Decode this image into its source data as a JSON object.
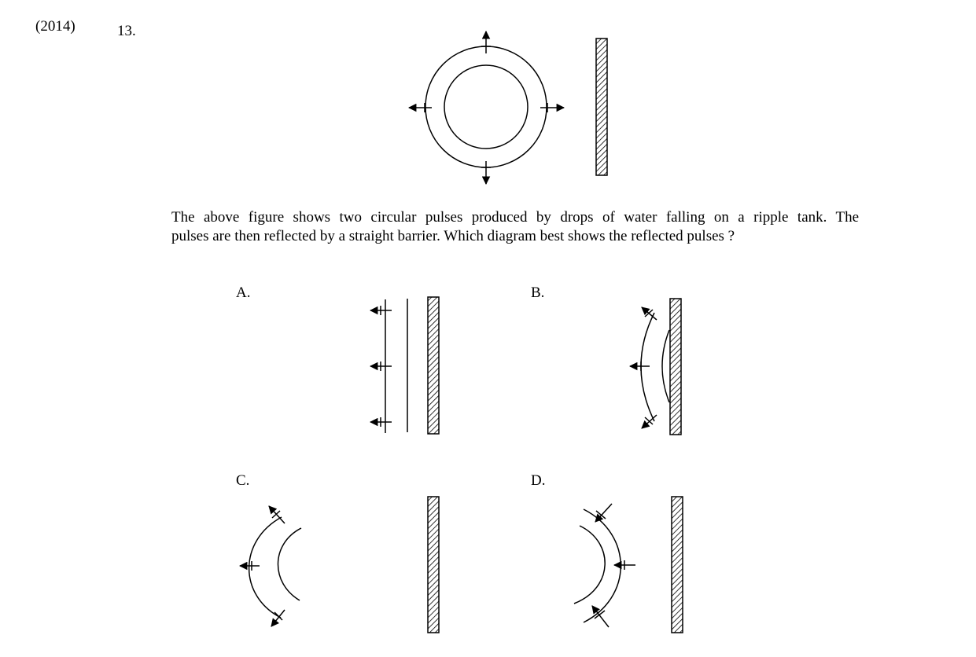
{
  "header": {
    "year": "(2014)",
    "number": "13."
  },
  "question": {
    "line1": "The above figure shows two circular pulses produced by drops of water falling on a ripple tank.  The",
    "line2": "pulses are then reflected by a straight barrier.  Which diagram best shows the reflected pulses ?"
  },
  "options": [
    {
      "label": "A."
    },
    {
      "label": "B."
    },
    {
      "label": "C."
    },
    {
      "label": "D."
    }
  ],
  "colors": {
    "ink": "#000000",
    "paper": "#ffffff"
  }
}
